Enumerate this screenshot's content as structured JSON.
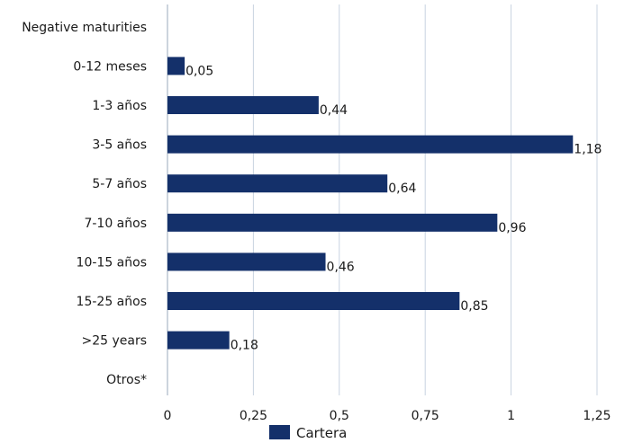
{
  "chart_data": {
    "type": "bar",
    "orientation": "horizontal",
    "categories": [
      "Negative maturities",
      "0-12 meses",
      "1-3 años",
      "3-5 años",
      "5-7 años",
      "7-10 años",
      "10-15 años",
      "15-25 años",
      ">25 years",
      "Otros*"
    ],
    "series": [
      {
        "name": "Cartera",
        "values": [
          null,
          0.05,
          0.44,
          1.18,
          0.64,
          0.96,
          0.46,
          0.85,
          0.18,
          null
        ],
        "value_labels": [
          "",
          "0,05",
          "0,44",
          "1,18",
          "0,64",
          "0,96",
          "0,46",
          "0,85",
          "0,18",
          ""
        ]
      }
    ],
    "xlim": [
      0,
      1.25
    ],
    "xticks": [
      0,
      0.25,
      0.5,
      0.75,
      1,
      1.25
    ],
    "xtick_labels": [
      "0",
      "0,25",
      "0,5",
      "0,75",
      "1",
      "1,25"
    ],
    "grid": "vertical",
    "legend_position": "bottom",
    "colors": {
      "bar": "#14306a",
      "grid": "#c8d3e0",
      "axis": "#9aaabb"
    }
  }
}
